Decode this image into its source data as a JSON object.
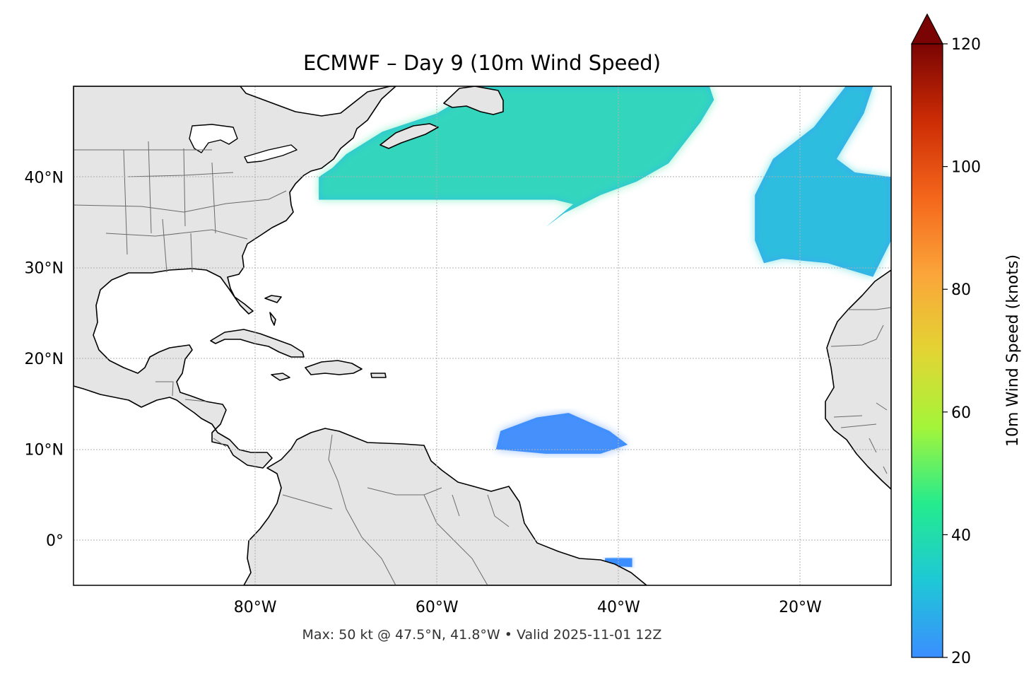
{
  "title": "ECMWF – Day 9 (10m Wind Speed)",
  "footer": "Max: 50 kt @ 47.5°N, 41.8°W • Valid 2025-11-01 12Z",
  "map": {
    "lon_range": [
      -100,
      -10
    ],
    "lat_range": [
      -5,
      50
    ],
    "lon_ticks": [
      {
        "value": -80,
        "label": "80°W"
      },
      {
        "value": -60,
        "label": "60°W"
      },
      {
        "value": -40,
        "label": "40°W"
      },
      {
        "value": -20,
        "label": "20°W"
      }
    ],
    "lat_ticks": [
      {
        "value": 40,
        "label": "40°N"
      },
      {
        "value": 30,
        "label": "30°N"
      },
      {
        "value": 20,
        "label": "20°N"
      },
      {
        "value": 10,
        "label": "10°N"
      },
      {
        "value": 0,
        "label": "0°"
      }
    ],
    "gridlines": true,
    "land_color": "#e5e5e5",
    "ocean_color": "#ffffff"
  },
  "colorbar": {
    "label": "10m Wind Speed (knots)",
    "range": [
      20,
      120
    ],
    "extend": "max",
    "ticks": [
      {
        "value": 20,
        "label": "20"
      },
      {
        "value": 40,
        "label": "40"
      },
      {
        "value": 60,
        "label": "60"
      },
      {
        "value": 80,
        "label": "80"
      },
      {
        "value": 100,
        "label": "100"
      },
      {
        "value": 120,
        "label": "120"
      }
    ],
    "colors": [
      "#3b8eff",
      "#1ec8d6",
      "#24eb8e",
      "#a4f53a",
      "#e3d433",
      "#fba53a",
      "#f4661b",
      "#cc2c05",
      "#7a0403"
    ]
  },
  "wind_fields": [
    {
      "name": "northwest-atlantic-wind",
      "color": "#2fc0e0",
      "core_color": "#38e8a0",
      "outline": [
        [
          -71.5,
          41
        ],
        [
          -70,
          42.5
        ],
        [
          -66,
          45
        ],
        [
          -60,
          47
        ],
        [
          -55,
          50
        ],
        [
          -30,
          50
        ],
        [
          -29.5,
          48.5
        ],
        [
          -31,
          46
        ],
        [
          -34.5,
          41.5
        ],
        [
          -38,
          39.5
        ],
        [
          -42,
          38
        ],
        [
          -46,
          36
        ],
        [
          -48,
          34.5
        ],
        [
          -45,
          37
        ],
        [
          -47,
          37.5
        ],
        [
          -60,
          37.5
        ],
        [
          -73,
          37.5
        ],
        [
          -73,
          40
        ]
      ]
    },
    {
      "name": "eastern-atlantic-wind",
      "color": "#3ba9f0",
      "core_color": "#22cfd0",
      "outline": [
        [
          -15,
          50
        ],
        [
          -12,
          50
        ],
        [
          -13,
          47
        ],
        [
          -16,
          42
        ],
        [
          -14,
          40.5
        ],
        [
          -10,
          40
        ],
        [
          -10,
          33
        ],
        [
          -12,
          29
        ],
        [
          -17,
          30.5
        ],
        [
          -22,
          31
        ],
        [
          -24,
          30.5
        ],
        [
          -25,
          33
        ],
        [
          -25,
          38
        ],
        [
          -23,
          42
        ],
        [
          -18.5,
          45.5
        ]
      ]
    },
    {
      "name": "tropical-wind",
      "color": "#3b8eff",
      "core_color": "#4f93f8",
      "outline": [
        [
          -53,
          12
        ],
        [
          -49,
          13.5
        ],
        [
          -45.5,
          14
        ],
        [
          -41,
          12
        ],
        [
          -39,
          10.5
        ],
        [
          -42,
          9.5
        ],
        [
          -48,
          9.5
        ],
        [
          -53.5,
          10
        ]
      ]
    },
    {
      "name": "equatorial-wind",
      "color": "#3b8eff",
      "core_color": "#3b8eff",
      "outline": [
        [
          -41.5,
          -2
        ],
        [
          -38.5,
          -2
        ],
        [
          -38.5,
          -3
        ],
        [
          -41.5,
          -2.8
        ]
      ]
    }
  ],
  "chart_data": {
    "type": "heatmap",
    "title": "ECMWF – Day 9 (10m Wind Speed)",
    "x_range": [
      -100,
      -10
    ],
    "y_range": [
      -5,
      50
    ],
    "colorbar_label": "10m Wind Speed (knots)",
    "colorbar_range": [
      20,
      120
    ],
    "max": {
      "value": 50,
      "lat": 47.5,
      "lon": -41.8
    }
  }
}
